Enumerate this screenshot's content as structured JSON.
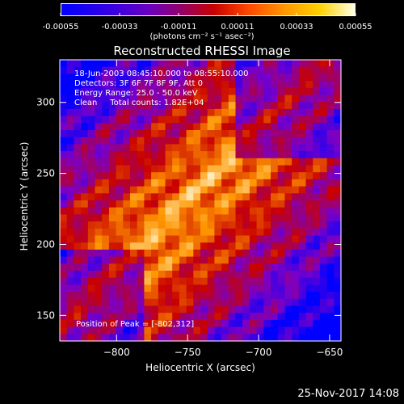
{
  "chart_data": {
    "type": "heatmap",
    "title": "Reconstructed RHESSI Image",
    "xlabel": "Heliocentric X (arcsec)",
    "ylabel": "Heliocentric Y (arcsec)",
    "xlim": [
      -840,
      -642
    ],
    "ylim": [
      132,
      330
    ],
    "x_ticks": [
      "−800",
      "−750",
      "−700",
      "−650"
    ],
    "x_tick_values": [
      -800,
      -750,
      -700,
      -650
    ],
    "y_ticks": [
      "150",
      "200",
      "250",
      "300"
    ],
    "y_tick_values": [
      150,
      200,
      250,
      300
    ],
    "colorbar": {
      "ticks": [
        "-0.00055",
        "-0.00033",
        "-0.00011",
        "0.00011",
        "0.00033",
        "0.00055"
      ],
      "tick_values": [
        -0.00055,
        -0.00033,
        -0.00011,
        0.00011,
        0.00033,
        0.00055
      ],
      "units": "(photons cm⁻² s⁻¹ asec⁻²)",
      "range": [
        -0.00055,
        0.00055
      ]
    },
    "annotations": {
      "time": "18-Jun-2003 08:45:10.000 to 08:55:10.000",
      "detectors": "Detectors: 3F 6F 7F 8F 9F, Att 0",
      "energy": "Energy Range: 25.0 - 50.0 keV",
      "method": "Clean     Total counts: 1.82E+04",
      "peak": "Position of Peak = [-802,312]"
    },
    "colors": {
      "low": "#0000ff",
      "mid_low": "#7a00c8",
      "mid": "#c80000",
      "mid_high": "#ff9600",
      "high": "#ffffe6"
    }
  },
  "footer": {
    "date": "25-Nov-2017 14:08"
  }
}
